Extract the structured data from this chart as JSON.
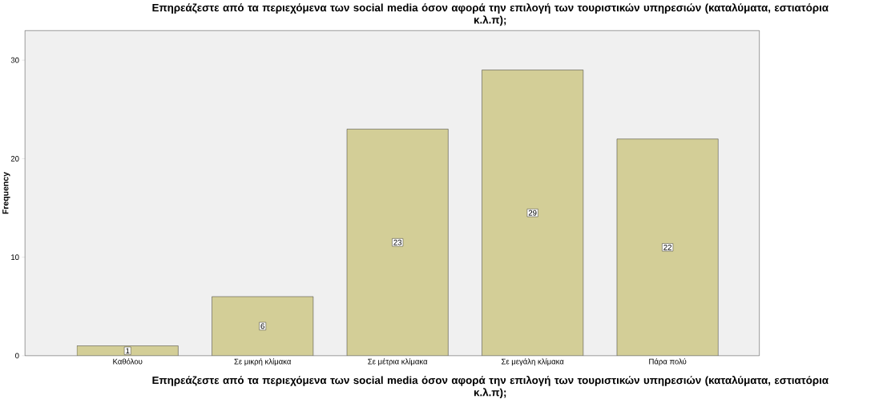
{
  "chart_data": {
    "type": "bar",
    "title": "Επηρεάζεστε από τα περιεχόμενα των social media όσον αφορά την επιλογή των τουριστικών υπηρεσιών (καταλύματα, εστιατόρια κ.λ.π);",
    "xlabel": "Επηρεάζεστε από τα περιεχόμενα των social media όσον αφορά την επιλογή των τουριστικών υπηρεσιών (καταλύματα, εστιατόρια κ.λ.π);",
    "ylabel": "Frequency",
    "categories": [
      "Καθόλου",
      "Σε μικρή κλίμακα",
      "Σε μέτρια κλίμακα",
      "Σε μεγάλη κλίμακα",
      "Πάρα πολύ"
    ],
    "values": [
      1,
      6,
      23,
      29,
      22
    ],
    "color": "#d3ce97",
    "ylim": [
      0,
      33
    ],
    "yticks": [
      0,
      10,
      20,
      30
    ],
    "data_labels": true
  }
}
